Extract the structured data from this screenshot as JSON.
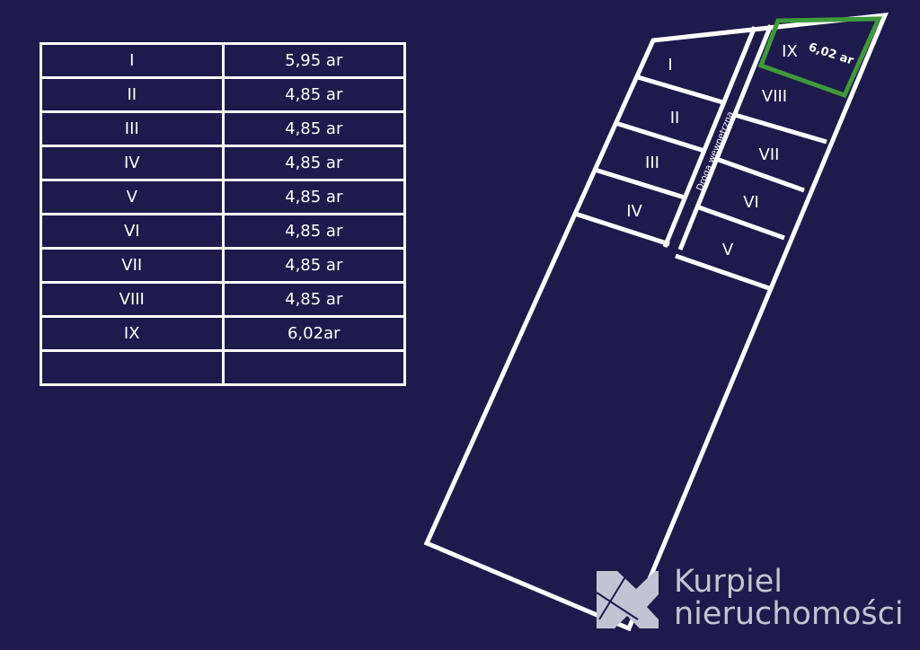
{
  "table": {
    "rows": [
      {
        "plot": "I",
        "area": "5,95 ar"
      },
      {
        "plot": "II",
        "area": "4,85 ar"
      },
      {
        "plot": "III",
        "area": "4,85 ar"
      },
      {
        "plot": "IV",
        "area": "4,85 ar"
      },
      {
        "plot": "V",
        "area": "4,85 ar"
      },
      {
        "plot": "VI",
        "area": "4,85 ar"
      },
      {
        "plot": "VII",
        "area": "4,85 ar"
      },
      {
        "plot": "VIII",
        "area": "4,85 ar"
      },
      {
        "plot": "IX",
        "area": "6,02ar"
      },
      {
        "plot": "",
        "area": ""
      }
    ]
  },
  "map": {
    "plots": {
      "I": "I",
      "II": "II",
      "III": "III",
      "IV": "IV",
      "V": "V",
      "VI": "VI",
      "VII": "VII",
      "VIII": "VIII",
      "IX": "IX"
    },
    "highlight_area": "6,02 ar",
    "road_label": "Droga wewnętrzna",
    "line_color": "#ffffff",
    "highlight_color": "#3e9a3a"
  },
  "logo": {
    "line1": "Kurpiel",
    "line2": "nieruchomości",
    "color": "#c4c3d3"
  },
  "background": "#1f1a4c"
}
